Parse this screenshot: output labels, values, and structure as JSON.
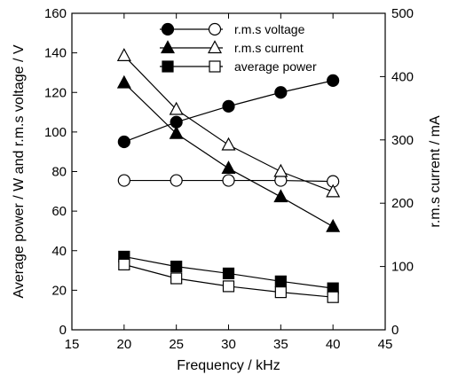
{
  "chart_data": {
    "type": "line",
    "title": "",
    "xlabel": "Frequency / kHz",
    "ylabel_left": "Average power / W and r.m.s voltage / V",
    "ylabel_right": "r.m.s current / mA",
    "xlim": [
      15,
      45
    ],
    "ylim_left": [
      0,
      160
    ],
    "ylim_right": [
      0,
      500
    ],
    "xticks": [
      15,
      20,
      25,
      30,
      35,
      40,
      45
    ],
    "yticks_left": [
      0,
      20,
      40,
      60,
      80,
      100,
      120,
      140,
      160
    ],
    "yticks_right": [
      0,
      100,
      200,
      300,
      400,
      500
    ],
    "grid": false,
    "legend_position": "top-right",
    "x": [
      20,
      25,
      30,
      35,
      40
    ],
    "series": [
      {
        "name": "r.m.s voltage",
        "axis": "left",
        "values": [
          95,
          105,
          113,
          120,
          126
        ],
        "marker": "circle",
        "fill": "filled"
      },
      {
        "name": "r.m.s voltage",
        "axis": "left",
        "values": [
          75.5,
          75.5,
          75.5,
          75.5,
          75
        ],
        "marker": "circle",
        "fill": "open"
      },
      {
        "name": "r.m.s current",
        "axis": "right",
        "values": [
          390,
          310,
          255,
          210,
          163
        ],
        "marker": "triangle",
        "fill": "filled"
      },
      {
        "name": "r.m.s current",
        "axis": "right",
        "values": [
          433,
          348,
          292,
          250,
          218
        ],
        "marker": "triangle",
        "fill": "open"
      },
      {
        "name": "average power",
        "axis": "left",
        "values": [
          37,
          32,
          28.5,
          24.5,
          21
        ],
        "marker": "square",
        "fill": "filled"
      },
      {
        "name": "average power",
        "axis": "left",
        "values": [
          33,
          26,
          22,
          19,
          16.5
        ],
        "marker": "square",
        "fill": "open"
      }
    ],
    "legend": [
      {
        "label": "r.m.s voltage",
        "marker": "circle"
      },
      {
        "label": "r.m.s current",
        "marker": "triangle"
      },
      {
        "label": "average power",
        "marker": "square"
      }
    ]
  }
}
